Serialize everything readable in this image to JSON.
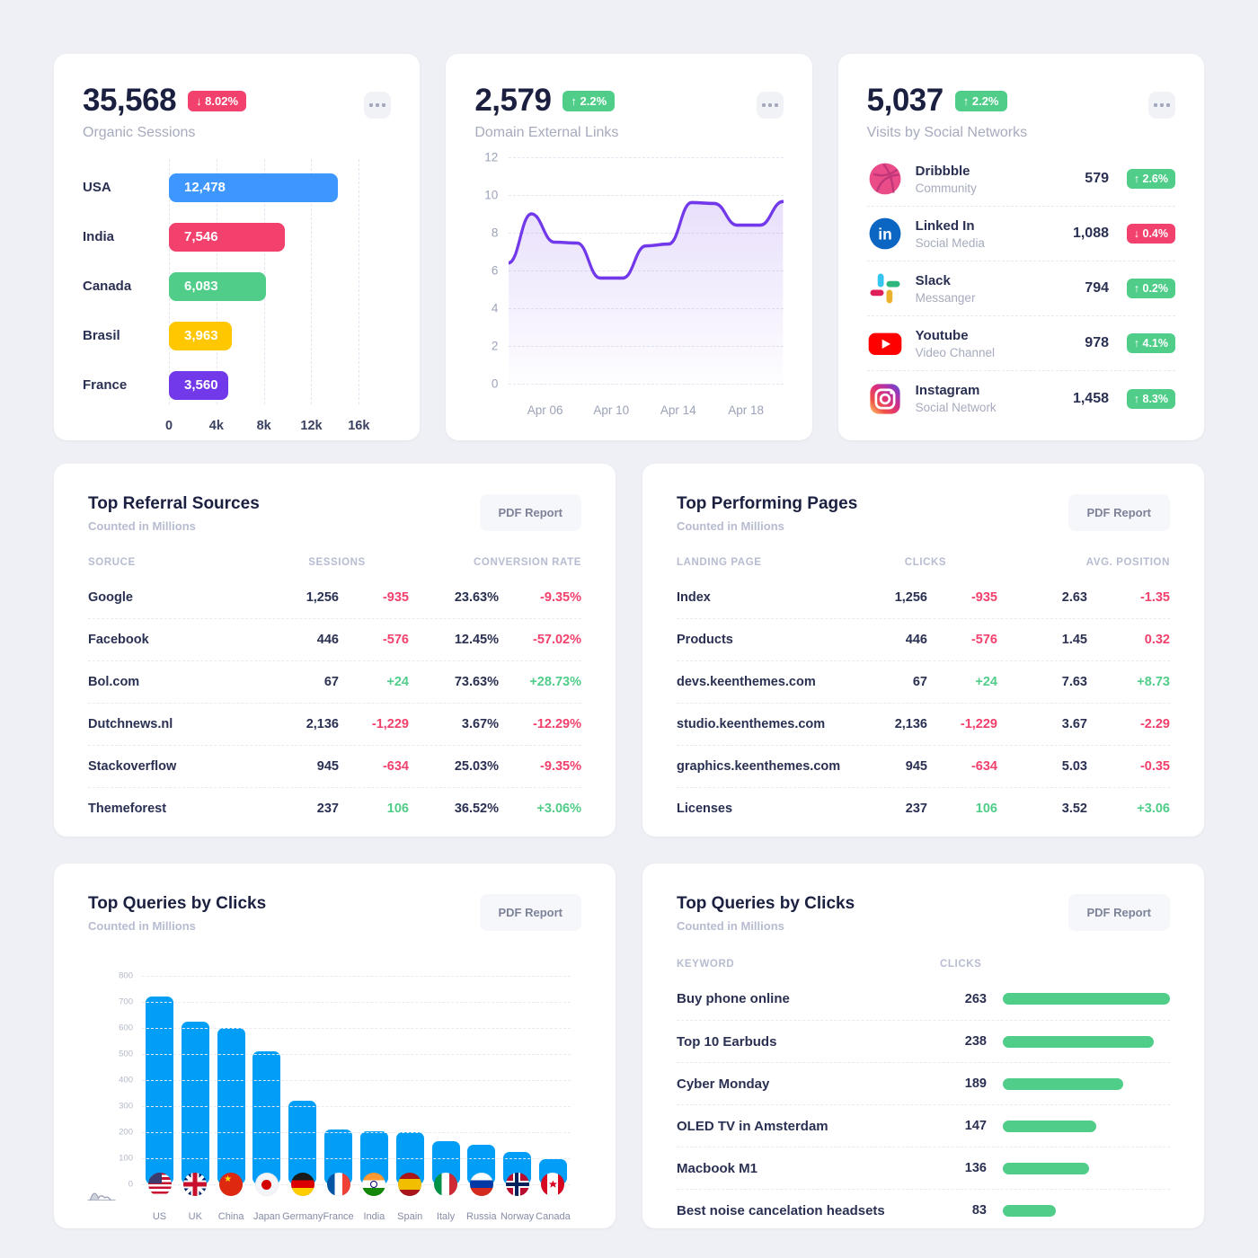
{
  "colors": {
    "background": "#eef0f5",
    "card": "#ffffff",
    "danger": "#f1416c",
    "success": "#50cd89",
    "primary_blue": "#009ef7",
    "purple": "#7239ea",
    "yellow": "#ffc700",
    "light_blue": "#3e97ff"
  },
  "cards": {
    "organic_sessions": {
      "value": "35,568",
      "delta": "↓ 8.02%",
      "delta_dir": "down",
      "subtitle": "Organic Sessions",
      "chart_data": {
        "type": "bar",
        "orientation": "horizontal",
        "categories": [
          "USA",
          "India",
          "Canada",
          "Brasil",
          "France"
        ],
        "values": [
          12478,
          7546,
          6083,
          3963,
          3560
        ],
        "value_labels": [
          "12,478",
          "7,546",
          "6,083",
          "3,963",
          "3,560"
        ],
        "bar_colors": [
          "#3e97ff",
          "#f1416c",
          "#50cd89",
          "#ffc700",
          "#7239ea"
        ],
        "bar_widths_pct": [
          89,
          61,
          51,
          33,
          31
        ],
        "x_ticks": [
          "0",
          "4k",
          "8k",
          "12k",
          "16k"
        ],
        "xlim": [
          0,
          16000
        ],
        "grid": true
      }
    },
    "domain_links": {
      "value": "2,579",
      "delta": "↑ 2.2%",
      "delta_dir": "up",
      "subtitle": "Domain External Links",
      "chart_data": {
        "type": "area",
        "line_color": "#7239ea",
        "x_ticks": [
          "Apr 06",
          "Apr 10",
          "Apr 14",
          "Apr 18"
        ],
        "y_ticks": [
          12,
          10,
          8,
          6,
          4,
          2,
          0
        ],
        "ylim": [
          0,
          12
        ],
        "y_values": [
          6.4,
          9.0,
          7.5,
          7.45,
          5.6,
          5.6,
          7.3,
          7.4,
          9.6,
          9.55,
          8.4,
          8.4,
          9.65
        ],
        "grid": true,
        "legend": false
      }
    },
    "social": {
      "value": "5,037",
      "delta": "↑ 2.2%",
      "delta_dir": "up",
      "subtitle": "Visits by Social Networks",
      "items": [
        {
          "name": "Dribbble",
          "category": "Community",
          "value": "579",
          "delta": "↑ 2.6%",
          "trend": "up"
        },
        {
          "name": "Linked In",
          "category": "Social Media",
          "value": "1,088",
          "delta": "↓ 0.4%",
          "trend": "down"
        },
        {
          "name": "Slack",
          "category": "Messanger",
          "value": "794",
          "delta": "↑ 0.2%",
          "trend": "up"
        },
        {
          "name": "Youtube",
          "category": "Video Channel",
          "value": "978",
          "delta": "↑ 4.1%",
          "trend": "up"
        },
        {
          "name": "Instagram",
          "category": "Social Network",
          "value": "1,458",
          "delta": "↑ 8.3%",
          "trend": "up"
        }
      ]
    },
    "referral": {
      "title": "Top Referral Sources",
      "subtitle": "Counted in Millions",
      "button_label": "PDF Report",
      "col_source": "SORUCE",
      "col_sessions": "SESSIONS",
      "col_conversion": "CONVERSION RATE",
      "rows": [
        {
          "source": "Google",
          "sessions": "1,256",
          "sessions_delta": "-935",
          "conversion": "23.63%",
          "conversion_delta": "-9.35%"
        },
        {
          "source": "Facebook",
          "sessions": "446",
          "sessions_delta": "-576",
          "conversion": "12.45%",
          "conversion_delta": "-57.02%"
        },
        {
          "source": "Bol.com",
          "sessions": "67",
          "sessions_delta": "+24",
          "conversion": "73.63%",
          "conversion_delta": "+28.73%"
        },
        {
          "source": "Dutchnews.nl",
          "sessions": "2,136",
          "sessions_delta": "-1,229",
          "conversion": "3.67%",
          "conversion_delta": "-12.29%"
        },
        {
          "source": "Stackoverflow",
          "sessions": "945",
          "sessions_delta": "-634",
          "conversion": "25.03%",
          "conversion_delta": "-9.35%"
        },
        {
          "source": "Themeforest",
          "sessions": "237",
          "sessions_delta": "106",
          "conversion": "36.52%",
          "conversion_delta": "+3.06%"
        }
      ]
    },
    "performing": {
      "title": "Top Performing Pages",
      "subtitle": "Counted in Millions",
      "button_label": "PDF Report",
      "col_page": "LANDING PAGE",
      "col_clicks": "CLICKS",
      "col_position": "AVG. POSITION",
      "rows": [
        {
          "page": "Index",
          "clicks": "1,256",
          "clicks_delta": "-935",
          "position": "2.63",
          "position_delta": "-1.35"
        },
        {
          "page": "Products",
          "clicks": "446",
          "clicks_delta": "-576",
          "position": "1.45",
          "position_delta": "0.32"
        },
        {
          "page": "devs.keenthemes.com",
          "clicks": "67",
          "clicks_delta": "+24",
          "position": "7.63",
          "position_delta": "+8.73"
        },
        {
          "page": "studio.keenthemes.com",
          "clicks": "2,136",
          "clicks_delta": "-1,229",
          "position": "3.67",
          "position_delta": "-2.29"
        },
        {
          "page": "graphics.keenthemes.com",
          "clicks": "945",
          "clicks_delta": "-634",
          "position": "5.03",
          "position_delta": "-0.35"
        },
        {
          "page": "Licenses",
          "clicks": "237",
          "clicks_delta": "106",
          "position": "3.52",
          "position_delta": "+3.06"
        }
      ]
    },
    "queries_chart": {
      "title": "Top Queries by Clicks",
      "subtitle": "Counted in Millions",
      "button_label": "PDF Report",
      "chart_data": {
        "type": "bar",
        "categories": [
          "US",
          "UK",
          "China",
          "Japan",
          "Germany",
          "France",
          "India",
          "Spain",
          "Italy",
          "Russia",
          "Norway",
          "Canada"
        ],
        "values": [
          720,
          625,
          600,
          510,
          320,
          212,
          205,
          200,
          165,
          152,
          123,
          97
        ],
        "y_ticks": [
          800,
          700,
          600,
          500,
          400,
          300,
          200,
          100,
          0
        ],
        "ylim": [
          0,
          800
        ],
        "bar_color": "#009ef7",
        "grid": true
      }
    },
    "queries_list": {
      "title": "Top Queries by Clicks",
      "subtitle": "Counted in Millions",
      "button_label": "PDF Report",
      "col_keyword": "KEYWORD",
      "col_clicks": "CLICKS",
      "max_clicks": 263,
      "bar_color": "#50cd89",
      "rows": [
        {
          "keyword": "Buy phone online",
          "clicks": "263"
        },
        {
          "keyword": "Top 10 Earbuds",
          "clicks": "238"
        },
        {
          "keyword": "Cyber Monday",
          "clicks": "189"
        },
        {
          "keyword": "OLED TV in Amsterdam",
          "clicks": "147"
        },
        {
          "keyword": "Macbook M1",
          "clicks": "136"
        },
        {
          "keyword": "Best noise cancelation headsets",
          "clicks": "83"
        }
      ]
    }
  }
}
